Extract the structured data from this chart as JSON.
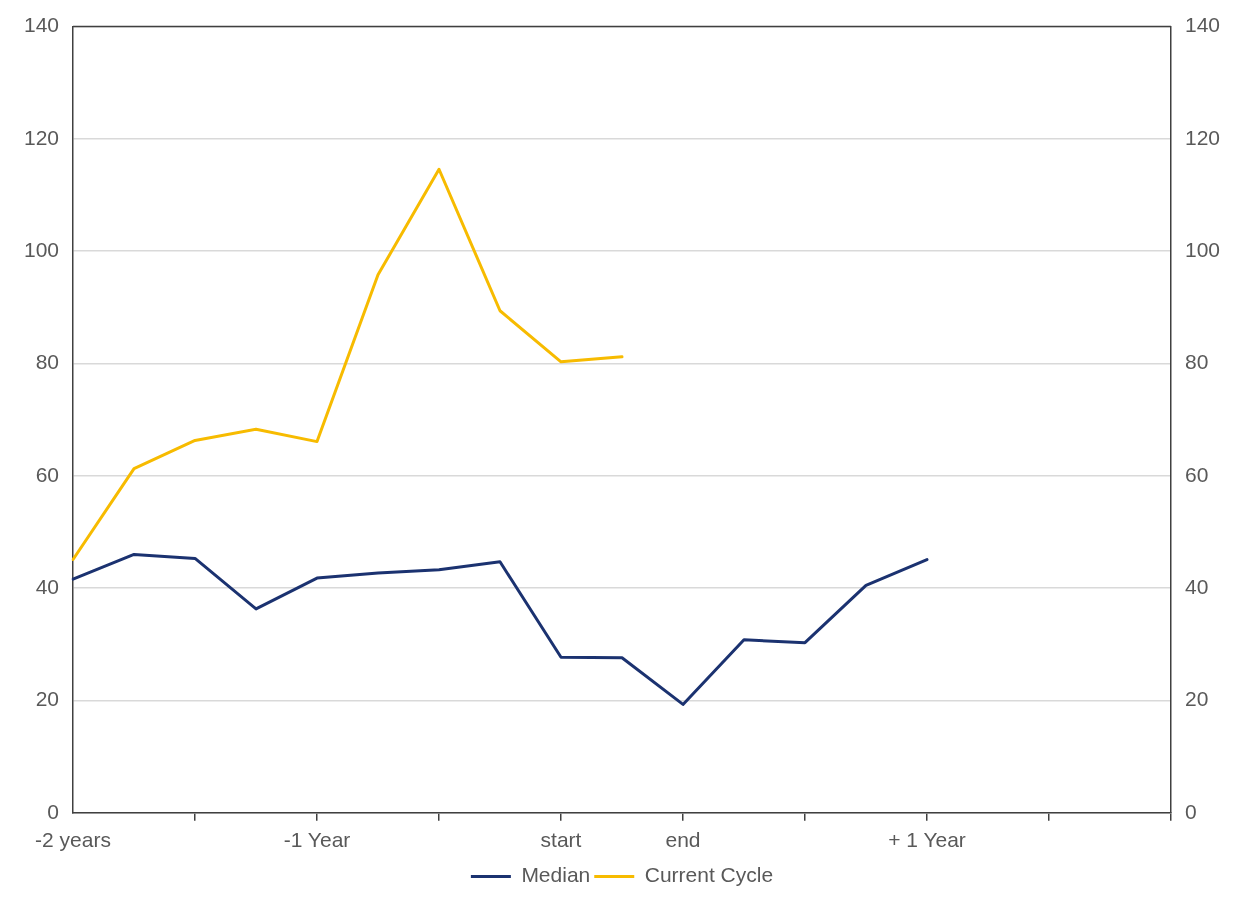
{
  "chart_data": {
    "type": "line",
    "categories": [
      "-2 years",
      null,
      null,
      null,
      "-1 Year",
      null,
      null,
      null,
      "start",
      null,
      "end",
      null,
      null,
      null,
      "+ 1 Year",
      null,
      null,
      null,
      null
    ],
    "series": [
      {
        "name": "Median",
        "color": "#1b3270",
        "values": [
          41.6,
          46,
          45.3,
          36.3,
          41.8,
          42.7,
          43.3,
          44.7,
          27.7,
          27.6,
          19.3,
          30.8,
          30.3,
          40.5,
          45.1,
          null,
          null,
          null,
          null
        ]
      },
      {
        "name": "Current Cycle",
        "color": "#f7bb00",
        "values": [
          45.1,
          61.3,
          66.3,
          68.3,
          66.1,
          95.8,
          114.6,
          89.4,
          80.3,
          81.2,
          null,
          null,
          null,
          null,
          null,
          null,
          null,
          null,
          null
        ]
      }
    ],
    "ylim": [
      0,
      140
    ],
    "yticks": [
      0,
      20,
      40,
      60,
      80,
      100,
      120,
      140
    ],
    "y2lim": [
      0,
      140
    ],
    "y2ticks": [
      0,
      20,
      40,
      60,
      80,
      100,
      120,
      140
    ],
    "grid": "y",
    "legend": "bottom",
    "marker": "none",
    "line_style": "solid"
  }
}
